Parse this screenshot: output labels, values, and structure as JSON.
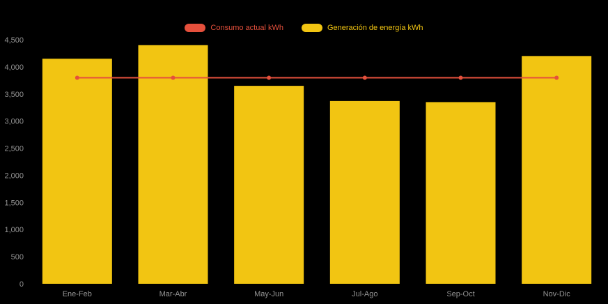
{
  "chart_data": {
    "type": "bar",
    "title": "",
    "categories": [
      "Ene-Feb",
      "Mar-Abr",
      "May-Jun",
      "Jul-Ago",
      "Sep-Oct",
      "Nov-Dic"
    ],
    "series": [
      {
        "name": "Consumo actual kWh",
        "type": "line",
        "color": "#e5503c",
        "values": [
          3800,
          3800,
          3800,
          3800,
          3800,
          3800
        ]
      },
      {
        "name": "Generación de energía kWh",
        "type": "bar",
        "color": "#f2c512",
        "values": [
          4150,
          4400,
          3650,
          3370,
          3350,
          4200
        ]
      }
    ],
    "xlabel": "",
    "ylabel": "",
    "ylim": [
      0,
      4500
    ],
    "ytick_step": 500,
    "grid": false,
    "legend_position": "top",
    "background_color": "#000000",
    "axis_label_color": "#949494"
  },
  "legend": {
    "items": [
      {
        "label": "Consumo actual kWh",
        "color": "#e5503c"
      },
      {
        "label": "Generación de energía kWh",
        "color": "#f2c512"
      }
    ]
  }
}
